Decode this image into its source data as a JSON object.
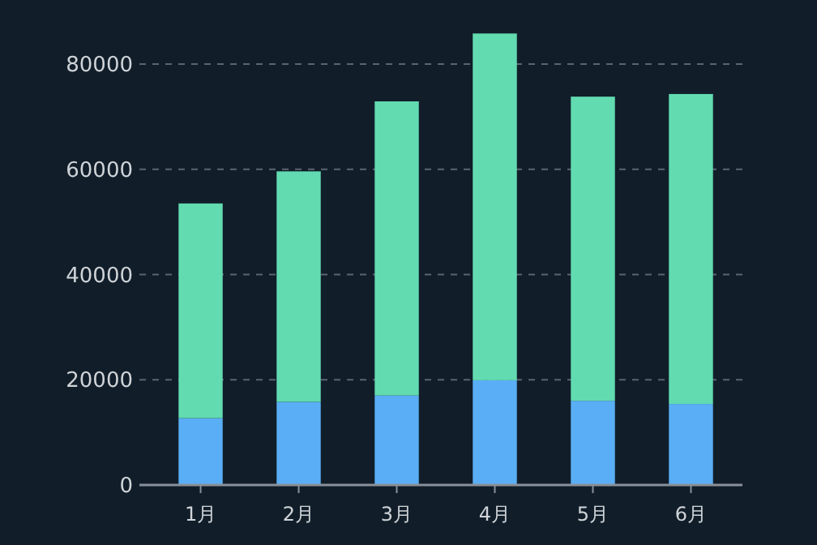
{
  "chart_data": {
    "type": "bar",
    "stacked": true,
    "categories": [
      "1月",
      "2月",
      "3月",
      "4月",
      "5月",
      "6月"
    ],
    "series": [
      {
        "color": "#5aaef5",
        "values": [
          12700,
          15800,
          17000,
          19900,
          16000,
          15400
        ]
      },
      {
        "color": "#62dbb0",
        "values": [
          40800,
          43800,
          55900,
          65900,
          57800,
          58900
        ]
      }
    ],
    "ylim": [
      0,
      86000
    ],
    "yticks": [
      0,
      20000,
      40000,
      60000,
      80000
    ],
    "grid": "y"
  }
}
